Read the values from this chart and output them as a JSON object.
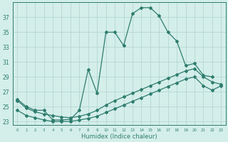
{
  "xlabel": "Humidex (Indice chaleur)",
  "x_ticks": [
    0,
    1,
    2,
    3,
    4,
    5,
    6,
    7,
    8,
    9,
    10,
    11,
    12,
    13,
    14,
    15,
    16,
    17,
    18,
    19,
    20,
    21,
    22,
    23
  ],
  "x_tick_labels": [
    "0",
    "1",
    "2",
    "3",
    "4",
    "5",
    "6",
    "7",
    "8",
    "9",
    "10",
    "11",
    "12",
    "13",
    "14",
    "15",
    "16",
    "17",
    "18",
    "19",
    "20",
    "21",
    "22",
    "23"
  ],
  "ylim": [
    22.5,
    39.0
  ],
  "yticks": [
    23,
    25,
    27,
    29,
    31,
    33,
    35,
    37
  ],
  "line1_x": [
    0,
    1,
    2,
    3,
    4,
    5,
    6,
    7,
    8,
    9,
    10,
    11,
    12,
    13,
    14,
    15,
    16,
    17,
    18,
    19,
    20,
    21,
    22
  ],
  "line1_y": [
    26.0,
    25.0,
    24.5,
    24.5,
    23.2,
    23.2,
    23.3,
    24.5,
    30.0,
    26.8,
    35.0,
    35.0,
    33.2,
    37.5,
    38.3,
    38.3,
    37.2,
    35.0,
    33.8,
    30.5,
    30.8,
    29.2,
    29.0
  ],
  "line2_x": [
    0,
    1,
    2,
    3,
    4,
    5,
    6,
    7,
    8,
    9,
    10,
    11,
    12,
    13,
    14,
    15,
    16,
    17,
    18,
    19,
    20,
    21,
    22,
    23
  ],
  "line2_y": [
    25.8,
    24.8,
    24.3,
    24.0,
    23.8,
    23.6,
    23.5,
    23.7,
    24.0,
    24.5,
    25.2,
    25.8,
    26.3,
    26.8,
    27.3,
    27.8,
    28.3,
    28.8,
    29.3,
    29.8,
    30.1,
    29.0,
    28.3,
    28.0
  ],
  "line3_x": [
    0,
    1,
    2,
    3,
    4,
    5,
    6,
    7,
    8,
    9,
    10,
    11,
    12,
    13,
    14,
    15,
    16,
    17,
    18,
    19,
    20,
    21,
    22,
    23
  ],
  "line3_y": [
    24.5,
    23.8,
    23.5,
    23.2,
    23.0,
    23.0,
    23.0,
    23.2,
    23.4,
    23.7,
    24.2,
    24.7,
    25.2,
    25.7,
    26.2,
    26.7,
    27.2,
    27.7,
    28.2,
    28.7,
    29.0,
    27.8,
    27.2,
    27.8
  ],
  "color": "#2e7d6e",
  "bg_color": "#d4eeea",
  "grid_color": "#aed4ce",
  "font_color": "#2e7d6e"
}
